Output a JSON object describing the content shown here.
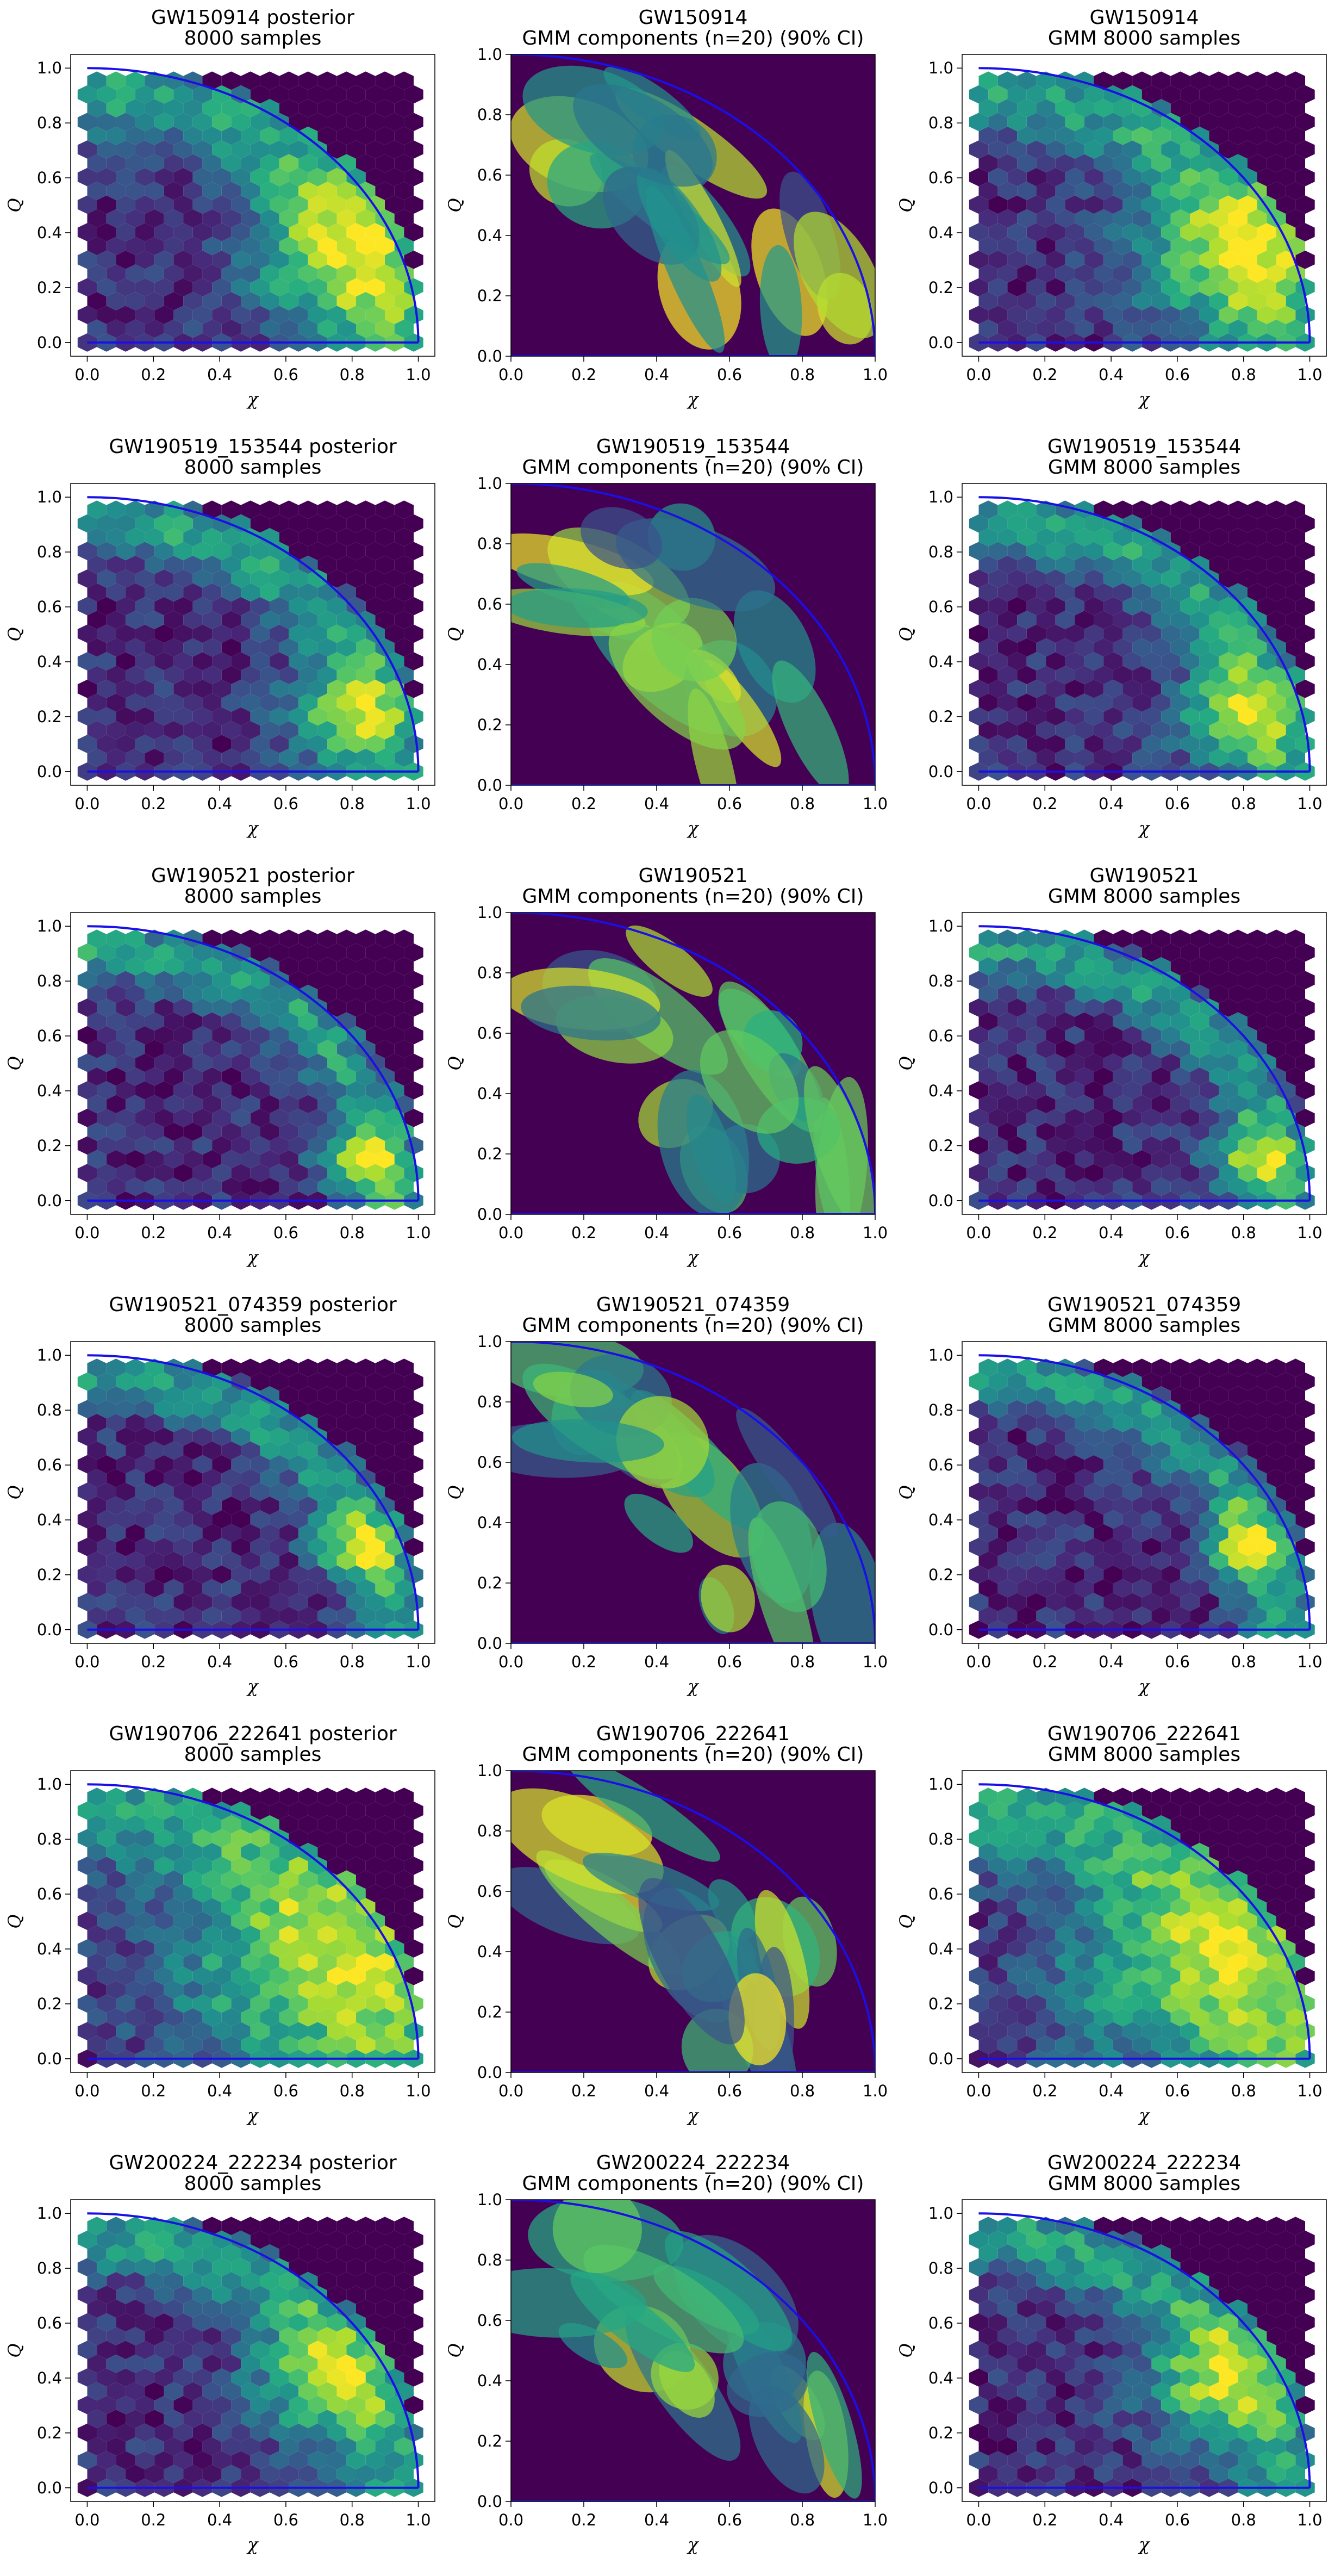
{
  "colors": {
    "background": "#440154",
    "curve": "#1a0fe6",
    "viridis": [
      "#440154",
      "#472a7a",
      "#3b518b",
      "#2c718e",
      "#21908d",
      "#27ad81",
      "#5cc863",
      "#aadc32",
      "#fde725"
    ]
  },
  "chart_data": [
    {
      "row": 0,
      "col": 0,
      "type": "hexbin",
      "event": "GW150914",
      "title": [
        "GW150914 posterior",
        "8000 samples"
      ],
      "xlabel": "χ",
      "ylabel": "Q",
      "xlim": [
        -0.05,
        1.05
      ],
      "ylim": [
        -0.05,
        1.05
      ],
      "xticks": [
        "0.0",
        "0.2",
        "0.4",
        "0.6",
        "0.8",
        "1.0"
      ],
      "yticks": [
        "0.0",
        "0.2",
        "0.4",
        "0.6",
        "0.8",
        "1.0"
      ],
      "samples": 8000,
      "peak": [
        0.72,
        0.3
      ],
      "spread": 0.2,
      "boundary": "quarter-circle"
    },
    {
      "row": 0,
      "col": 1,
      "type": "gmm-ellipses",
      "event": "GW150914",
      "title": [
        "GW150914",
        "GMM components (n=20) (90% CI)"
      ],
      "xlabel": "χ",
      "ylabel": "Q",
      "xlim": [
        0,
        1
      ],
      "ylim": [
        0,
        1
      ],
      "xticks": [
        "0.0",
        "0.2",
        "0.4",
        "0.6",
        "0.8",
        "1.0"
      ],
      "yticks": [
        "0.0",
        "0.2",
        "0.4",
        "0.6",
        "0.8",
        "1.0"
      ],
      "components": 20,
      "ci": 0.9
    },
    {
      "row": 0,
      "col": 2,
      "type": "hexbin",
      "event": "GW150914",
      "title": [
        "GW150914",
        "GMM 8000 samples"
      ],
      "xlabel": "χ",
      "ylabel": "Q",
      "xlim": [
        -0.05,
        1.05
      ],
      "ylim": [
        -0.05,
        1.05
      ],
      "xticks": [
        "0.0",
        "0.2",
        "0.4",
        "0.6",
        "0.8",
        "1.0"
      ],
      "yticks": [
        "0.0",
        "0.2",
        "0.4",
        "0.6",
        "0.8",
        "1.0"
      ],
      "samples": 8000,
      "peak": [
        0.72,
        0.3
      ],
      "spread": 0.2,
      "boundary": "quarter-circle"
    },
    {
      "row": 1,
      "col": 0,
      "type": "hexbin",
      "event": "GW190519_153544",
      "title": [
        "GW190519_153544 posterior",
        "8000 samples"
      ],
      "xlabel": "χ",
      "ylabel": "Q",
      "xlim": [
        -0.05,
        1.05
      ],
      "ylim": [
        -0.05,
        1.05
      ],
      "xticks": [
        "0.0",
        "0.2",
        "0.4",
        "0.6",
        "0.8",
        "1.0"
      ],
      "yticks": [
        "0.0",
        "0.2",
        "0.4",
        "0.6",
        "0.8",
        "1.0"
      ],
      "samples": 8000,
      "peak": [
        0.75,
        0.2
      ],
      "spread": 0.13,
      "boundary": "quarter-circle"
    },
    {
      "row": 1,
      "col": 1,
      "type": "gmm-ellipses",
      "event": "GW190519_153544",
      "title": [
        "GW190519_153544",
        "GMM components (n=20) (90% CI)"
      ],
      "xlabel": "χ",
      "ylabel": "Q",
      "xlim": [
        0,
        1
      ],
      "ylim": [
        0,
        1
      ],
      "xticks": [
        "0.0",
        "0.2",
        "0.4",
        "0.6",
        "0.8",
        "1.0"
      ],
      "yticks": [
        "0.0",
        "0.2",
        "0.4",
        "0.6",
        "0.8",
        "1.0"
      ],
      "components": 20,
      "ci": 0.9
    },
    {
      "row": 1,
      "col": 2,
      "type": "hexbin",
      "event": "GW190519_153544",
      "title": [
        "GW190519_153544",
        "GMM 8000 samples"
      ],
      "xlabel": "χ",
      "ylabel": "Q",
      "xlim": [
        -0.05,
        1.05
      ],
      "ylim": [
        -0.05,
        1.05
      ],
      "xticks": [
        "0.0",
        "0.2",
        "0.4",
        "0.6",
        "0.8",
        "1.0"
      ],
      "yticks": [
        "0.0",
        "0.2",
        "0.4",
        "0.6",
        "0.8",
        "1.0"
      ],
      "samples": 8000,
      "peak": [
        0.75,
        0.2
      ],
      "spread": 0.13,
      "boundary": "quarter-circle"
    },
    {
      "row": 2,
      "col": 0,
      "type": "hexbin",
      "event": "GW190521",
      "title": [
        "GW190521 posterior",
        "8000 samples"
      ],
      "xlabel": "χ",
      "ylabel": "Q",
      "xlim": [
        -0.05,
        1.05
      ],
      "ylim": [
        -0.05,
        1.05
      ],
      "xticks": [
        "0.0",
        "0.2",
        "0.4",
        "0.6",
        "0.8",
        "1.0"
      ],
      "yticks": [
        "0.0",
        "0.2",
        "0.4",
        "0.6",
        "0.8",
        "1.0"
      ],
      "samples": 8000,
      "peak": [
        0.82,
        0.15
      ],
      "spread": 0.09,
      "boundary": "quarter-circle"
    },
    {
      "row": 2,
      "col": 1,
      "type": "gmm-ellipses",
      "event": "GW190521",
      "title": [
        "GW190521",
        "GMM components (n=20) (90% CI)"
      ],
      "xlabel": "χ",
      "ylabel": "Q",
      "xlim": [
        0,
        1
      ],
      "ylim": [
        0,
        1
      ],
      "xticks": [
        "0.0",
        "0.2",
        "0.4",
        "0.6",
        "0.8",
        "1.0"
      ],
      "yticks": [
        "0.0",
        "0.2",
        "0.4",
        "0.6",
        "0.8",
        "1.0"
      ],
      "components": 20,
      "ci": 0.9
    },
    {
      "row": 2,
      "col": 2,
      "type": "hexbin",
      "event": "GW190521",
      "title": [
        "GW190521",
        "GMM 8000 samples"
      ],
      "xlabel": "χ",
      "ylabel": "Q",
      "xlim": [
        -0.05,
        1.05
      ],
      "ylim": [
        -0.05,
        1.05
      ],
      "xticks": [
        "0.0",
        "0.2",
        "0.4",
        "0.6",
        "0.8",
        "1.0"
      ],
      "yticks": [
        "0.0",
        "0.2",
        "0.4",
        "0.6",
        "0.8",
        "1.0"
      ],
      "samples": 8000,
      "peak": [
        0.82,
        0.15
      ],
      "spread": 0.09,
      "boundary": "quarter-circle"
    },
    {
      "row": 3,
      "col": 0,
      "type": "hexbin",
      "event": "GW190521_074359",
      "title": [
        "GW190521_074359 posterior",
        "8000 samples"
      ],
      "xlabel": "χ",
      "ylabel": "Q",
      "xlim": [
        -0.05,
        1.05
      ],
      "ylim": [
        -0.05,
        1.05
      ],
      "xticks": [
        "0.0",
        "0.2",
        "0.4",
        "0.6",
        "0.8",
        "1.0"
      ],
      "yticks": [
        "0.0",
        "0.2",
        "0.4",
        "0.6",
        "0.8",
        "1.0"
      ],
      "samples": 8000,
      "peak": [
        0.8,
        0.3
      ],
      "spread": 0.09,
      "boundary": "quarter-circle"
    },
    {
      "row": 3,
      "col": 1,
      "type": "gmm-ellipses",
      "event": "GW190521_074359",
      "title": [
        "GW190521_074359",
        "GMM components (n=20) (90% CI)"
      ],
      "xlabel": "χ",
      "ylabel": "Q",
      "xlim": [
        0,
        1
      ],
      "ylim": [
        0,
        1
      ],
      "xticks": [
        "0.0",
        "0.2",
        "0.4",
        "0.6",
        "0.8",
        "1.0"
      ],
      "yticks": [
        "0.0",
        "0.2",
        "0.4",
        "0.6",
        "0.8",
        "1.0"
      ],
      "components": 20,
      "ci": 0.9
    },
    {
      "row": 3,
      "col": 2,
      "type": "hexbin",
      "event": "GW190521_074359",
      "title": [
        "GW190521_074359",
        "GMM 8000 samples"
      ],
      "xlabel": "χ",
      "ylabel": "Q",
      "xlim": [
        -0.05,
        1.05
      ],
      "ylim": [
        -0.05,
        1.05
      ],
      "xticks": [
        "0.0",
        "0.2",
        "0.4",
        "0.6",
        "0.8",
        "1.0"
      ],
      "yticks": [
        "0.0",
        "0.2",
        "0.4",
        "0.6",
        "0.8",
        "1.0"
      ],
      "samples": 8000,
      "peak": [
        0.8,
        0.3
      ],
      "spread": 0.09,
      "boundary": "quarter-circle"
    },
    {
      "row": 4,
      "col": 0,
      "type": "hexbin",
      "event": "GW190706_222641",
      "title": [
        "GW190706_222641 posterior",
        "8000 samples"
      ],
      "xlabel": "χ",
      "ylabel": "Q",
      "xlim": [
        -0.05,
        1.05
      ],
      "ylim": [
        -0.05,
        1.05
      ],
      "xticks": [
        "0.0",
        "0.2",
        "0.4",
        "0.6",
        "0.8",
        "1.0"
      ],
      "yticks": [
        "0.0",
        "0.2",
        "0.4",
        "0.6",
        "0.8",
        "1.0"
      ],
      "samples": 8000,
      "peak": [
        0.6,
        0.3
      ],
      "spread": 0.28,
      "boundary": "quarter-circle"
    },
    {
      "row": 4,
      "col": 1,
      "type": "gmm-ellipses",
      "event": "GW190706_222641",
      "title": [
        "GW190706_222641",
        "GMM components (n=20) (90% CI)"
      ],
      "xlabel": "χ",
      "ylabel": "Q",
      "xlim": [
        0,
        1
      ],
      "ylim": [
        0,
        1
      ],
      "xticks": [
        "0.0",
        "0.2",
        "0.4",
        "0.6",
        "0.8",
        "1.0"
      ],
      "yticks": [
        "0.0",
        "0.2",
        "0.4",
        "0.6",
        "0.8",
        "1.0"
      ],
      "components": 20,
      "ci": 0.9
    },
    {
      "row": 4,
      "col": 2,
      "type": "hexbin",
      "event": "GW190706_222641",
      "title": [
        "GW190706_222641",
        "GMM 8000 samples"
      ],
      "xlabel": "χ",
      "ylabel": "Q",
      "xlim": [
        -0.05,
        1.05
      ],
      "ylim": [
        -0.05,
        1.05
      ],
      "xticks": [
        "0.0",
        "0.2",
        "0.4",
        "0.6",
        "0.8",
        "1.0"
      ],
      "yticks": [
        "0.0",
        "0.2",
        "0.4",
        "0.6",
        "0.8",
        "1.0"
      ],
      "samples": 8000,
      "peak": [
        0.6,
        0.3
      ],
      "spread": 0.28,
      "boundary": "quarter-circle"
    },
    {
      "row": 5,
      "col": 0,
      "type": "hexbin",
      "event": "GW200224_222234",
      "title": [
        "GW200224_222234 posterior",
        "8000 samples"
      ],
      "xlabel": "χ",
      "ylabel": "Q",
      "xlim": [
        -0.05,
        1.05
      ],
      "ylim": [
        -0.05,
        1.05
      ],
      "xticks": [
        "0.0",
        "0.2",
        "0.4",
        "0.6",
        "0.8",
        "1.0"
      ],
      "yticks": [
        "0.0",
        "0.2",
        "0.4",
        "0.6",
        "0.8",
        "1.0"
      ],
      "samples": 8000,
      "peak": [
        0.68,
        0.38
      ],
      "spread": 0.15,
      "boundary": "quarter-circle"
    },
    {
      "row": 5,
      "col": 1,
      "type": "gmm-ellipses",
      "event": "GW200224_222234",
      "title": [
        "GW200224_222234",
        "GMM components (n=20) (90% CI)"
      ],
      "xlabel": "χ",
      "ylabel": "Q",
      "xlim": [
        0,
        1
      ],
      "ylim": [
        0,
        1
      ],
      "xticks": [
        "0.0",
        "0.2",
        "0.4",
        "0.6",
        "0.8",
        "1.0"
      ],
      "yticks": [
        "0.0",
        "0.2",
        "0.4",
        "0.6",
        "0.8",
        "1.0"
      ],
      "components": 20,
      "ci": 0.9
    },
    {
      "row": 5,
      "col": 2,
      "type": "hexbin",
      "event": "GW200224_222234",
      "title": [
        "GW200224_222234",
        "GMM 8000 samples"
      ],
      "xlabel": "χ",
      "ylabel": "Q",
      "xlim": [
        -0.05,
        1.05
      ],
      "ylim": [
        -0.05,
        1.05
      ],
      "xticks": [
        "0.0",
        "0.2",
        "0.4",
        "0.6",
        "0.8",
        "1.0"
      ],
      "yticks": [
        "0.0",
        "0.2",
        "0.4",
        "0.6",
        "0.8",
        "1.0"
      ],
      "samples": 8000,
      "peak": [
        0.68,
        0.38
      ],
      "spread": 0.15,
      "boundary": "quarter-circle"
    }
  ]
}
